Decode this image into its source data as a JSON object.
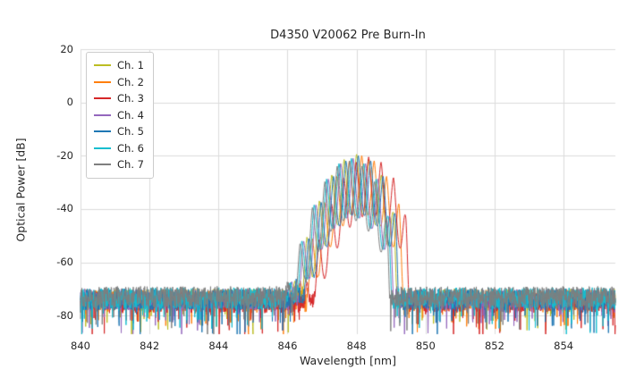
{
  "chart_data": {
    "type": "line",
    "title": "D4350 V20062 Pre Burn-In",
    "xlabel": "Wavelength [nm]",
    "ylabel": "Optical Power [dB]",
    "xlim": [
      840,
      855.5
    ],
    "ylim": [
      -87,
      20
    ],
    "xticks": [
      840,
      842,
      844,
      846,
      848,
      850,
      852,
      854
    ],
    "yticks": [
      20,
      0,
      -20,
      -40,
      -60,
      -80
    ],
    "grid": true,
    "grid_color": "#dcdcdc",
    "legend_position": "upper-left",
    "description": "Optical spectra of 7 laser channels before burn-in; broadband noise floor near -74 dB across 840-855.5 nm with multimode emission lobes between ~846 and ~849.3 nm peaking near -20 dB around 848 nm.",
    "series": [
      {
        "name": "Ch. 1",
        "color": "#bcbd22",
        "seed": 11,
        "center": 848.0,
        "peak_db": -19.5,
        "mode_spacing": 0.36,
        "envelope_curvature": 15,
        "dip_depth": 22,
        "right_cut": 849.0,
        "noise_floor": -74.0
      },
      {
        "name": "Ch. 2",
        "color": "#ff7f0e",
        "seed": 22,
        "center": 848.15,
        "peak_db": -20.0,
        "mode_spacing": 0.36,
        "envelope_curvature": 15,
        "dip_depth": 22,
        "right_cut": 849.2,
        "noise_floor": -74.5
      },
      {
        "name": "Ch. 3",
        "color": "#d62728",
        "seed": 33,
        "center": 848.35,
        "peak_db": -20.5,
        "mode_spacing": 0.36,
        "envelope_curvature": 15,
        "dip_depth": 22,
        "right_cut": 849.35,
        "noise_floor": -75.0
      },
      {
        "name": "Ch. 4",
        "color": "#9467bd",
        "seed": 44,
        "center": 847.9,
        "peak_db": -21.0,
        "mode_spacing": 0.36,
        "envelope_curvature": 15,
        "dip_depth": 22,
        "right_cut": 848.9,
        "noise_floor": -74.0
      },
      {
        "name": "Ch. 5",
        "color": "#1f77b4",
        "seed": 55,
        "center": 848.05,
        "peak_db": -20.0,
        "mode_spacing": 0.36,
        "envelope_curvature": 15,
        "dip_depth": 22,
        "right_cut": 849.05,
        "noise_floor": -74.0
      },
      {
        "name": "Ch. 6",
        "color": "#17becf",
        "seed": 66,
        "center": 847.85,
        "peak_db": -21.0,
        "mode_spacing": 0.36,
        "envelope_curvature": 15,
        "dip_depth": 22,
        "right_cut": 848.85,
        "noise_floor": -73.5
      },
      {
        "name": "Ch. 7",
        "color": "#7f7f7f",
        "seed": 77,
        "center": 847.8,
        "peak_db": -22.0,
        "mode_spacing": 0.36,
        "envelope_curvature": 15,
        "dip_depth": 22,
        "right_cut": 848.8,
        "noise_floor": -73.0
      }
    ]
  }
}
